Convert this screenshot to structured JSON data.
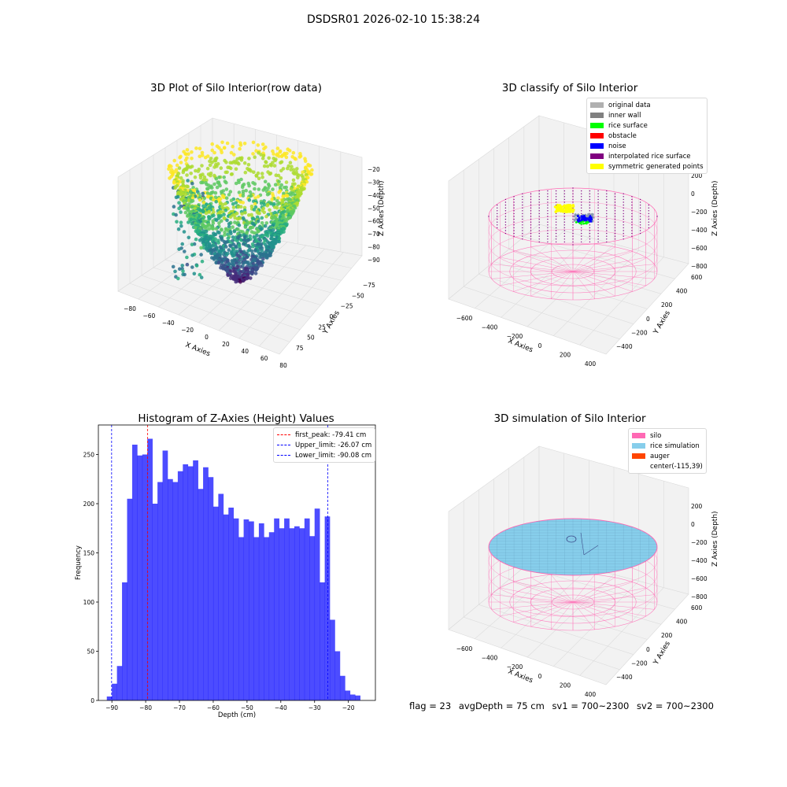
{
  "figure": {
    "suptitle": "DSDSR01 2026-02-10 15:38:24",
    "footer": {
      "flag": "flag = 23",
      "avg_depth": "avgDepth = 75 cm",
      "sv1": "sv1 = 700~2300",
      "sv2": "sv2 = 700~2300"
    }
  },
  "chart_data": [
    {
      "id": "raw",
      "type": "scatter",
      "title": "3D Plot of Silo Interior(row data)",
      "xlabel": "X Axies",
      "ylabel": "Y Axies",
      "zlabel": "Z Axies (Depth)",
      "x_ticks": [
        "−80",
        "−60",
        "−40",
        "−20",
        "0",
        "20",
        "40",
        "60",
        "80"
      ],
      "y_ticks": [
        "−75",
        "−50",
        "−25",
        "0",
        "25",
        "50",
        "75"
      ],
      "z_ticks": [
        "−20",
        "−30",
        "−40",
        "−50",
        "−60",
        "−70",
        "−80",
        "−90"
      ],
      "xlim": [
        -90,
        85
      ],
      "ylim": [
        -80,
        85
      ],
      "zlim": [
        -95,
        -15
      ],
      "colormap": "viridis",
      "description_shape": "conical bowl, deepest near center"
    },
    {
      "id": "classify",
      "type": "scatter",
      "title": "3D classify of Silo Interior",
      "xlabel": "X Axies",
      "ylabel": "Y Axies",
      "zlabel": "Z Axies (Depth)",
      "x_ticks": [
        "−600",
        "−400",
        "−200",
        "0",
        "200",
        "400"
      ],
      "y_ticks": [
        "−400",
        "−200",
        "0",
        "200",
        "400",
        "600"
      ],
      "z_ticks": [
        "200",
        "0",
        "−200",
        "−400",
        "−600",
        "−800"
      ],
      "legend": [
        {
          "label": "original data",
          "color": "#b0b0b0"
        },
        {
          "label": "inner wall",
          "color": "#808080"
        },
        {
          "label": "rice surface",
          "color": "#00ff00"
        },
        {
          "label": "obstacle",
          "color": "#ff0000"
        },
        {
          "label": "noise",
          "color": "#0000ff"
        },
        {
          "label": "interpolated rice surface",
          "color": "#800080"
        },
        {
          "label": "symmetric generated points",
          "color": "#ffff00"
        }
      ]
    },
    {
      "id": "hist",
      "type": "bar",
      "title": "Histogram of Z-Axies (Height) Values",
      "xlabel": "Depth (cm)",
      "ylabel": "Frequency",
      "xlim": [
        -94,
        -12
      ],
      "ylim": [
        0,
        280
      ],
      "x_ticks": [
        -90,
        -80,
        -70,
        -60,
        -50,
        -40,
        -30,
        -20
      ],
      "y_ticks": [
        0,
        50,
        100,
        150,
        200,
        250
      ],
      "bin_start": -91.5,
      "bin_width": 1.5,
      "values": [
        4,
        17,
        35,
        120,
        205,
        260,
        249,
        250,
        266,
        200,
        222,
        254,
        225,
        222,
        233,
        240,
        238,
        244,
        215,
        237,
        227,
        197,
        210,
        189,
        196,
        185,
        166,
        184,
        182,
        166,
        180,
        166,
        171,
        185,
        175,
        185,
        175,
        177,
        175,
        185,
        167,
        195,
        120,
        187,
        82,
        50,
        25,
        10,
        6,
        5
      ],
      "bar_color": "#0000ff",
      "lines": [
        {
          "label": "first_peak: -79.41 cm",
          "x": -79.41,
          "color": "#ff0000"
        },
        {
          "label": "Upper_limit: -26.07 cm",
          "x": -26.07,
          "color": "#0000ff"
        },
        {
          "label": "Lower_limit: -90.08 cm",
          "x": -90.08,
          "color": "#0000ff"
        }
      ]
    },
    {
      "id": "sim",
      "type": "scatter",
      "title": "3D simulation of Silo Interior",
      "xlabel": "X Axies",
      "ylabel": "Y Axies",
      "zlabel": "Z Axies (Depth)",
      "x_ticks": [
        "−600",
        "−400",
        "−200",
        "0",
        "200",
        "400"
      ],
      "y_ticks": [
        "−400",
        "−200",
        "0",
        "200",
        "400",
        "600"
      ],
      "z_ticks": [
        "200",
        "0",
        "−200",
        "−400",
        "−600",
        "−800"
      ],
      "legend": [
        {
          "label": "silo",
          "color": "#ff69b4"
        },
        {
          "label": "rice simulation",
          "color": "#87ceeb"
        },
        {
          "label": "auger",
          "color": "#ff4500"
        },
        {
          "label": "center(-115,39)",
          "color": ""
        }
      ]
    }
  ]
}
